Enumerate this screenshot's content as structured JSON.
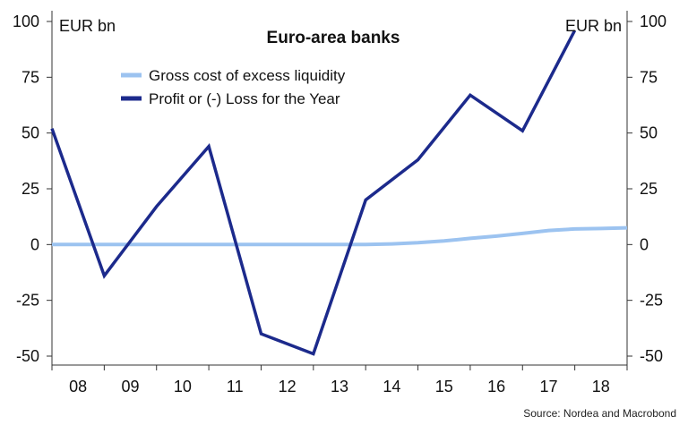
{
  "chart_data": {
    "type": "line",
    "title": "Euro-area banks",
    "y_unit_left": "EUR bn",
    "y_unit_right": "EUR bn",
    "ylim": [
      -50,
      100
    ],
    "y_ticks": [
      100,
      75,
      50,
      25,
      0,
      -25,
      -50
    ],
    "x_tick_labels": [
      "08",
      "09",
      "10",
      "11",
      "12",
      "13",
      "14",
      "15",
      "16",
      "17",
      "18"
    ],
    "xlim": [
      2008,
      2019
    ],
    "legend_position": "top-center",
    "series": [
      {
        "name": "Gross cost of excess liquidity",
        "color": "#9cc3f0",
        "x": [
          2008.0,
          2014.0,
          2014.5,
          2015.0,
          2015.5,
          2016.0,
          2016.5,
          2017.0,
          2017.5,
          2018.0,
          2018.5,
          2019.0
        ],
        "values": [
          0,
          0,
          0.3,
          0.8,
          1.6,
          2.8,
          3.8,
          5.0,
          6.3,
          7.0,
          7.2,
          7.5
        ]
      },
      {
        "name": "Profit or (-) Loss for the Year",
        "color": "#1c2a8c",
        "x": [
          2008.0,
          2009.0,
          2010.0,
          2011.0,
          2012.0,
          2013.0,
          2014.0,
          2015.0,
          2016.0,
          2017.0,
          2018.0
        ],
        "values": [
          52,
          -14,
          17,
          44,
          -40,
          -49,
          20,
          38,
          67,
          51,
          96
        ]
      }
    ],
    "source": "Source: Nordea and Macrobond"
  }
}
